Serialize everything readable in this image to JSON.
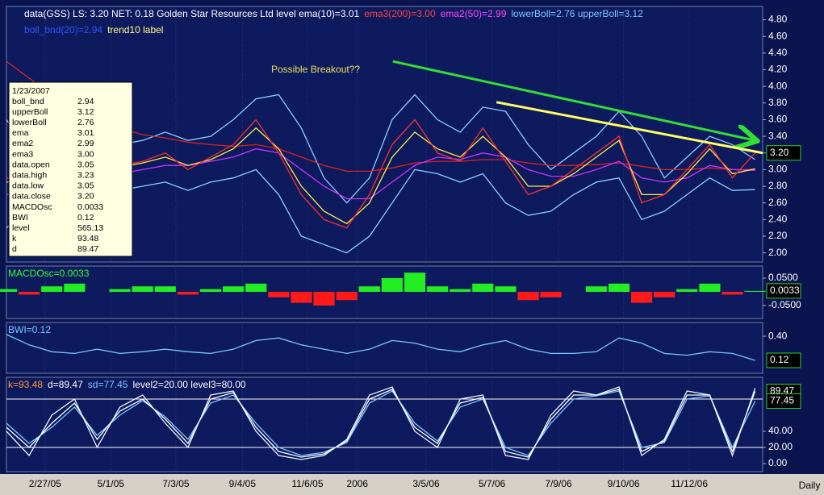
{
  "chart_data": [
    {
      "type": "line",
      "header": [
        [
          {
            "text": "data(GSS) LS: 3.20  NET: 0.18  Golden Star Resources Ltd level ema(10)=3.01",
            "color": "#ffffff"
          },
          {
            "text": "ema3(200)=3.00",
            "color": "#ff4040"
          },
          {
            "text": "ema2(50)=2.99",
            "color": "#ff44ff"
          },
          {
            "text": "lowerBoll=2.76 upperBoll=3.12",
            "color": "#7cc6ff"
          }
        ],
        [
          {
            "text": "boll_bnd(20)=2.94",
            "color": "#2f55ff"
          },
          {
            "text": "trend10 label",
            "color": "#ffff88"
          }
        ]
      ],
      "annotation": "Possible Breakout??",
      "xlim": [
        0,
        100
      ],
      "x": [
        0,
        3,
        6,
        9,
        12,
        15,
        18,
        21,
        24,
        27,
        30,
        33,
        36,
        39,
        42,
        45,
        48,
        51,
        54,
        57,
        60,
        63,
        66,
        69,
        72,
        75,
        78,
        81,
        84,
        87,
        90,
        93,
        96,
        99
      ],
      "ylim": [
        1.89,
        4.96
      ],
      "yticks": [
        {
          "value": 2,
          "label": "2.00"
        },
        {
          "value": 2.2,
          "label": "2.20"
        },
        {
          "value": 2.4,
          "label": "2.40"
        },
        {
          "value": 2.6,
          "label": "2.60"
        },
        {
          "value": 2.8,
          "label": "2.80"
        },
        {
          "value": 3,
          "label": "3.00"
        },
        {
          "value": 3.2,
          "label": "3.20"
        },
        {
          "value": 3.4,
          "label": "3.40"
        },
        {
          "value": 3.6,
          "label": "3.60"
        },
        {
          "value": 3.8,
          "label": "3.80"
        },
        {
          "value": 4,
          "label": "4.00"
        },
        {
          "value": 4.2,
          "label": "4.20"
        },
        {
          "value": 4.4,
          "label": "4.40"
        },
        {
          "value": 4.6,
          "label": "4.60"
        },
        {
          "value": 4.8,
          "label": "4.80"
        }
      ],
      "series": [
        {
          "color": "#8ccfff",
          "values": [
            3.6,
            3.2,
            3.25,
            3.3,
            3.3,
            3.3,
            3.35,
            3.45,
            3.35,
            3.4,
            3.6,
            3.85,
            3.9,
            3.5,
            2.9,
            2.6,
            2.9,
            3.6,
            3.9,
            3.6,
            3.45,
            3.75,
            3.7,
            3.3,
            3.0,
            3.2,
            3.4,
            3.7,
            3.4,
            2.9,
            3.15,
            3.4,
            3.3,
            3.12
          ]
        },
        {
          "color": "#8ccfff",
          "values": [
            2.3,
            2.55,
            2.7,
            2.8,
            2.7,
            2.75,
            2.8,
            2.85,
            2.75,
            2.85,
            2.9,
            3.0,
            2.7,
            2.2,
            2.1,
            2.0,
            2.2,
            2.6,
            3.0,
            2.95,
            2.85,
            2.95,
            2.6,
            2.45,
            2.5,
            2.7,
            2.85,
            2.9,
            2.4,
            2.5,
            2.7,
            2.9,
            2.75,
            2.76
          ]
        },
        {
          "color": "#e02020",
          "values": [
            4.3,
            4.1,
            3.9,
            3.75,
            3.6,
            3.5,
            3.42,
            3.38,
            3.33,
            3.3,
            3.28,
            3.3,
            3.25,
            3.15,
            3.05,
            2.98,
            2.98,
            3.02,
            3.08,
            3.1,
            3.1,
            3.12,
            3.12,
            3.08,
            3.05,
            3.05,
            3.06,
            3.08,
            3.04,
            3.0,
            3.0,
            3.02,
            3.0,
            3.0
          ]
        },
        {
          "color": "#cc33ff",
          "values": [
            2.7,
            2.75,
            2.8,
            2.88,
            2.9,
            2.95,
            3.0,
            3.05,
            3.05,
            3.1,
            3.15,
            3.25,
            3.2,
            3.0,
            2.8,
            2.65,
            2.65,
            2.85,
            3.05,
            3.15,
            3.12,
            3.2,
            3.15,
            3.0,
            2.92,
            2.92,
            3.0,
            3.1,
            2.9,
            2.85,
            2.9,
            3.05,
            3.0,
            2.99
          ]
        },
        {
          "color": "#ffee44",
          "values": [
            2.85,
            2.87,
            2.95,
            3.05,
            3.0,
            3.03,
            3.08,
            3.15,
            3.05,
            3.12,
            3.25,
            3.5,
            3.25,
            2.8,
            2.5,
            2.35,
            2.6,
            3.15,
            3.45,
            3.25,
            3.15,
            3.4,
            3.15,
            2.8,
            2.8,
            2.95,
            3.15,
            3.35,
            2.7,
            2.7,
            2.95,
            3.25,
            2.95,
            3.01
          ]
        },
        {
          "color": "#ff3030",
          "values": [
            2.9,
            2.85,
            3.0,
            3.1,
            2.95,
            3.05,
            3.1,
            3.2,
            3.0,
            3.15,
            3.3,
            3.6,
            3.2,
            2.7,
            2.4,
            2.3,
            2.7,
            3.3,
            3.6,
            3.2,
            3.1,
            3.5,
            3.1,
            2.7,
            2.8,
            3.0,
            3.2,
            3.4,
            2.6,
            2.7,
            3.0,
            3.3,
            2.9,
            3.2
          ]
        }
      ],
      "trend_lines": [
        {
          "color": "#33dd33",
          "arrow": true,
          "x": [
            51.1,
            99.0
          ],
          "values": [
            4.3,
            3.35
          ]
        },
        {
          "color": "#ffff66",
          "arrow": false,
          "x": [
            64.8,
            100
          ],
          "values": [
            3.81,
            3.2
          ]
        }
      ],
      "current": {
        "value": 3.2,
        "label": "3.20"
      },
      "tooltip": {
        "title": "1/23/2007",
        "rows": [
          [
            "boll_bnd",
            "2.94"
          ],
          [
            "upperBoll",
            "3.12"
          ],
          [
            "lowerBoll",
            "2.76"
          ],
          [
            "ema",
            "3.01"
          ],
          [
            "ema2",
            "2.99"
          ],
          [
            "ema3",
            "3.00"
          ],
          [
            "data.open",
            "3.05"
          ],
          [
            "data.high",
            "3.23"
          ],
          [
            "data.low",
            "3.05"
          ],
          [
            "data.close",
            "3.20"
          ],
          [
            "MACDOsc",
            "0.0033"
          ],
          [
            "BWI",
            "0.12"
          ],
          [
            "level",
            "565.13"
          ],
          [
            "k",
            "93.48"
          ],
          [
            "d",
            "89.47"
          ]
        ]
      }
    },
    {
      "type": "bar",
      "header": [
        [
          {
            "text": "MACDOsc=0.0033",
            "color": "#33ff33"
          }
        ]
      ],
      "ylim": [
        -0.097,
        0.094
      ],
      "yticks": [
        {
          "value": -0.05,
          "label": "-0.0500"
        },
        {
          "value": 0.05,
          "label": "0.0500"
        }
      ],
      "color_up": "#22ee22",
      "color_down": "#ff1a1a",
      "values": [
        0.01,
        -0.01,
        0.02,
        0.03,
        0.0,
        0.01,
        0.02,
        0.02,
        -0.01,
        0.01,
        0.02,
        0.03,
        -0.02,
        -0.04,
        -0.05,
        -0.03,
        0.02,
        0.05,
        0.07,
        0.02,
        0.01,
        0.03,
        0.02,
        -0.03,
        -0.02,
        0.0,
        0.02,
        0.03,
        -0.04,
        -0.02,
        0.01,
        0.03,
        -0.01,
        0.0033
      ],
      "current": {
        "value": 0.0033,
        "label": "0.0033"
      }
    },
    {
      "type": "line",
      "header": [
        [
          {
            "text": "BWI=0.12",
            "color": "#7cc6ff"
          }
        ]
      ],
      "ylim": [
        -0.03,
        0.56
      ],
      "yticks": [
        {
          "value": 0.4,
          "label": "0.40"
        }
      ],
      "series": [
        {
          "color": "#7cc6ff",
          "values": [
            0.42,
            0.3,
            0.22,
            0.2,
            0.25,
            0.2,
            0.22,
            0.25,
            0.22,
            0.2,
            0.25,
            0.35,
            0.38,
            0.3,
            0.25,
            0.2,
            0.25,
            0.35,
            0.32,
            0.25,
            0.22,
            0.3,
            0.35,
            0.25,
            0.2,
            0.2,
            0.22,
            0.38,
            0.32,
            0.2,
            0.18,
            0.22,
            0.2,
            0.12
          ]
        }
      ],
      "current": {
        "value": 0.12,
        "label": "0.12"
      }
    },
    {
      "type": "line",
      "header": [
        [
          {
            "text": "k=93.48",
            "color": "#ff9933"
          },
          {
            "text": "d=89.47",
            "color": "#ffffff"
          },
          {
            "text": "sd=77.45",
            "color": "#7cc6ff"
          },
          {
            "text": "level2=20.00 level3=80.00",
            "color": "#ffffff"
          }
        ]
      ],
      "ylim": [
        -10,
        107
      ],
      "yticks": [
        {
          "value": 0,
          "label": "0.00"
        },
        {
          "value": 20,
          "label": "20.00"
        },
        {
          "value": 40,
          "label": "40.00"
        }
      ],
      "levels": [
        20,
        80
      ],
      "series": [
        {
          "color": "#7cc6ff",
          "values": [
            50,
            25,
            45,
            70,
            35,
            60,
            78,
            58,
            30,
            75,
            85,
            50,
            20,
            10,
            14,
            26,
            75,
            90,
            50,
            28,
            70,
            80,
            20,
            10,
            50,
            80,
            84,
            90,
            20,
            26,
            80,
            84,
            20,
            77.45
          ]
        },
        {
          "color": "#ffffff",
          "values": [
            45,
            20,
            50,
            75,
            30,
            65,
            80,
            55,
            25,
            80,
            88,
            45,
            15,
            8,
            12,
            28,
            80,
            92,
            45,
            25,
            75,
            82,
            15,
            8,
            55,
            85,
            85,
            92,
            15,
            28,
            85,
            85,
            15,
            89.47
          ]
        },
        {
          "color": "#e8f4ff",
          "values": [
            40,
            10,
            60,
            80,
            20,
            70,
            85,
            50,
            20,
            85,
            90,
            40,
            10,
            5,
            10,
            30,
            85,
            95,
            40,
            20,
            80,
            85,
            10,
            5,
            60,
            90,
            85,
            95,
            10,
            30,
            90,
            85,
            10,
            93.48
          ]
        }
      ],
      "current_list": [
        {
          "value": 89.47,
          "label": "89.47"
        },
        {
          "value": 77.45,
          "label": "77.45"
        }
      ],
      "xticks": [
        {
          "value": 5.1,
          "label": "2/27/05"
        },
        {
          "value": 13.8,
          "label": "5/1/05"
        },
        {
          "value": 22.4,
          "label": "7/3/05"
        },
        {
          "value": 31.2,
          "label": "9/4/05"
        },
        {
          "value": 39.8,
          "label": "11/6/05"
        },
        {
          "value": 46.4,
          "label": "2006"
        },
        {
          "value": 55.5,
          "label": "3/5/06"
        },
        {
          "value": 64.2,
          "label": "5/7/06"
        },
        {
          "value": 73.0,
          "label": "7/9/06"
        },
        {
          "value": 81.6,
          "label": "9/10/06"
        },
        {
          "value": 90.3,
          "label": "11/12/06"
        }
      ],
      "x_label": "Daily"
    }
  ]
}
